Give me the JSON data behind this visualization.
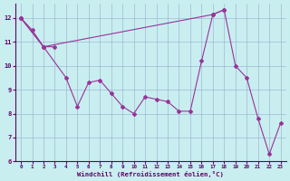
{
  "xlabel": "Windchill (Refroidissement éolien,°C)",
  "background_color": "#c8eef0",
  "line_color": "#993399",
  "grid_color": "#99aacc",
  "xlim": [
    -0.5,
    23.5
  ],
  "ylim": [
    6,
    12.6
  ],
  "yticks": [
    6,
    7,
    8,
    9,
    10,
    11,
    12
  ],
  "xticks": [
    0,
    1,
    2,
    3,
    4,
    5,
    6,
    7,
    8,
    9,
    10,
    11,
    12,
    13,
    14,
    15,
    16,
    17,
    18,
    19,
    20,
    21,
    22,
    23
  ],
  "curve1_x": [
    0,
    1,
    2,
    3
  ],
  "curve1_y": [
    12.0,
    11.5,
    10.8,
    10.8
  ],
  "curve2_x": [
    0,
    2,
    17,
    18
  ],
  "curve2_y": [
    12.0,
    10.8,
    12.15,
    12.35
  ],
  "curve3_x": [
    0,
    2,
    4,
    5,
    6,
    7,
    8,
    9,
    10,
    11,
    12,
    13,
    14,
    15,
    16,
    17,
    18,
    19,
    20,
    21,
    22,
    23
  ],
  "curve3_y": [
    12.0,
    10.8,
    9.5,
    8.3,
    9.3,
    9.4,
    8.85,
    8.3,
    8.0,
    8.7,
    8.6,
    8.5,
    8.1,
    8.1,
    10.2,
    12.15,
    12.35,
    10.0,
    9.5,
    7.8,
    6.3,
    7.6
  ]
}
